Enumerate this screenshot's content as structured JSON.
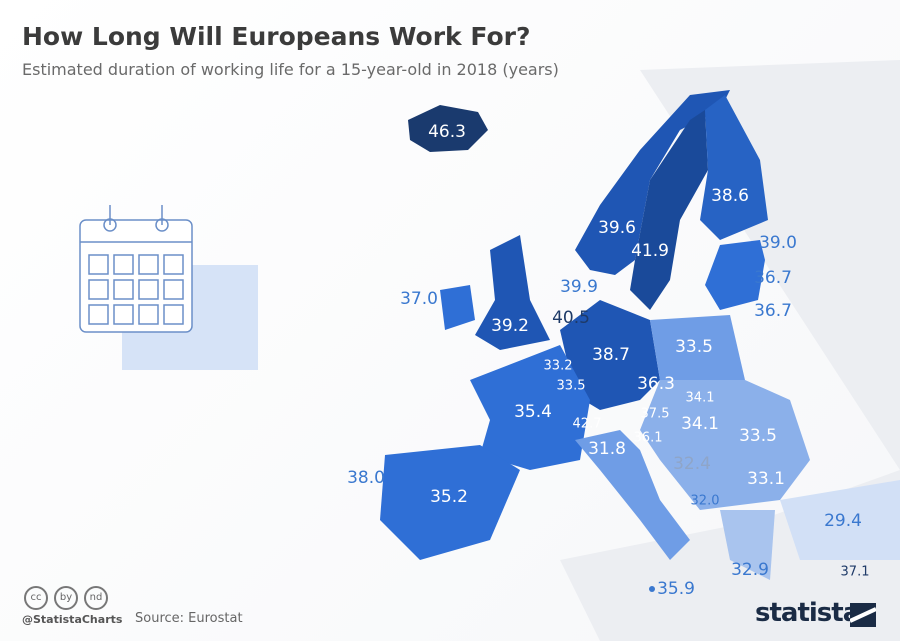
{
  "header": {
    "title": "How Long Will Europeans Work For?",
    "subtitle": "Estimated duration of working life for a 15-year-old in 2018 (years)"
  },
  "colors": {
    "darkest": "#1a3a6e",
    "dark": "#1f56b4",
    "mid": "#2f6fd6",
    "light": "#6f9de6",
    "lighter": "#a9c4ee",
    "lightest": "#d2e0f6",
    "background_land": "#eceef2"
  },
  "icons": [
    "calendar-icon",
    "briefcase-icon"
  ],
  "values": {
    "iceland": "46.3",
    "sweden": "41.9",
    "norway": "39.6",
    "finland": "38.6",
    "estonia": "39.0",
    "latvia": "36.7",
    "lithuania": "36.7",
    "denmark": "39.9",
    "ireland": "37.0",
    "uk": "39.2",
    "netherlands": "40.5",
    "belgium": "33.2",
    "luxembourg": "33.5",
    "germany": "38.7",
    "poland": "33.5",
    "czechia": "36.3",
    "slovakia": "34.1",
    "austria": "37.5",
    "hungary": "34.1",
    "switzerland": "42.7",
    "slovenia": "36.1",
    "france": "35.4",
    "italy": "31.8",
    "romania": "33.5",
    "croatia": "32.4",
    "bulgaria": "33.1",
    "north_macedonia": "32.0",
    "portugal": "38.0",
    "spain": "35.2",
    "turkey": "29.4",
    "greece": "32.9",
    "cyprus": "37.1",
    "malta": "35.9"
  },
  "footer": {
    "handle": "@StatistaCharts",
    "source": "Source: Eurostat",
    "logo": "statista",
    "license_icons": [
      "cc",
      "by",
      "nd"
    ]
  }
}
